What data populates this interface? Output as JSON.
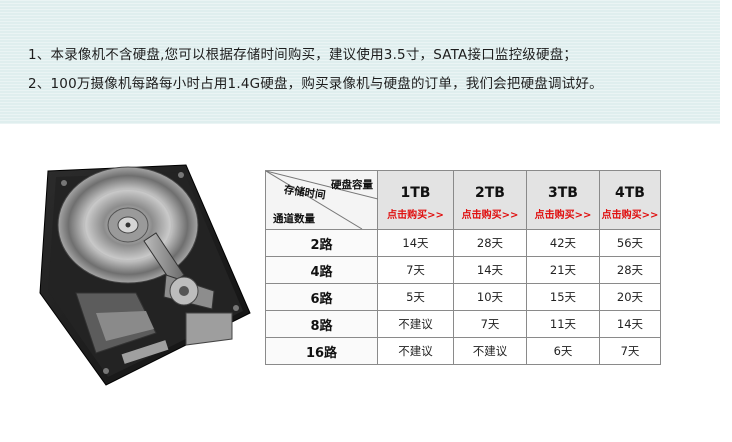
{
  "notice": {
    "line1": "1、本录像机不含硬盘,您可以根据存储时间购买，建议使用3.5寸，SATA接口监控级硬盘；",
    "line2": "2、100万摄像机每路每小时占用1.4G硬盘，购买录像机与硬盘的订单，我们会把硬盘调试好。"
  },
  "table": {
    "corner": {
      "capacity": "硬盘容量",
      "time": "存储时间",
      "channels": "通道数量"
    },
    "columns": [
      {
        "capacity": "1TB",
        "buy": "点击购买>>"
      },
      {
        "capacity": "2TB",
        "buy": "点击购买>>"
      },
      {
        "capacity": "3TB",
        "buy": "点击购买>>"
      },
      {
        "capacity": "4TB",
        "buy": "点击购买>>"
      }
    ],
    "rows": [
      {
        "label": "2路",
        "cells": [
          "14天",
          "28天",
          "42天",
          "56天"
        ]
      },
      {
        "label": "4路",
        "cells": [
          "7天",
          "14天",
          "21天",
          "28天"
        ]
      },
      {
        "label": "6路",
        "cells": [
          "5天",
          "10天",
          "15天",
          "20天"
        ]
      },
      {
        "label": "8路",
        "cells": [
          "不建议",
          "7天",
          "11天",
          "14天"
        ]
      },
      {
        "label": "16路",
        "cells": [
          "不建议",
          "不建议",
          "6天",
          "7天"
        ]
      }
    ]
  },
  "colors": {
    "banner": "#dfeeee",
    "buy_link": "#e01010"
  },
  "icons": {
    "product_image": "hard-disk-drive-icon"
  }
}
